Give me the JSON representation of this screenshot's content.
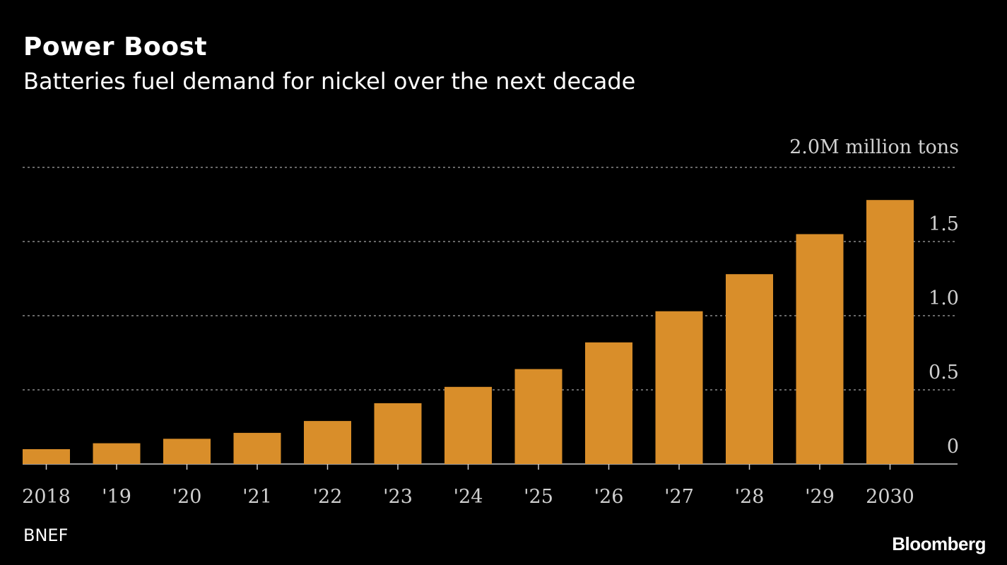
{
  "title": "Power Boost",
  "subtitle": "Batteries fuel demand for nickel over the next decade",
  "source": "BNEF",
  "logo": "Bloomberg",
  "colors": {
    "background": "#000000",
    "bar": "#d98e2a",
    "grid": "#8a8a8a",
    "text": "#ffffff",
    "tick": "#d0d0d0"
  },
  "chart_data": {
    "type": "bar",
    "categories": [
      "2018",
      "'19",
      "'20",
      "'21",
      "'22",
      "'23",
      "'24",
      "'25",
      "'26",
      "'27",
      "'28",
      "'29",
      "2030"
    ],
    "values": [
      0.1,
      0.14,
      0.17,
      0.21,
      0.29,
      0.41,
      0.52,
      0.64,
      0.82,
      1.03,
      1.28,
      1.55,
      1.78
    ],
    "ylim": [
      0,
      2.0
    ],
    "yticks": [
      0,
      0.5,
      1.0,
      1.5,
      2.0
    ],
    "ytick_labels": [
      "0",
      "0.5",
      "1.0",
      "1.5",
      "2.0M million tons"
    ],
    "grid": true,
    "ylabel": "",
    "xlabel": ""
  }
}
